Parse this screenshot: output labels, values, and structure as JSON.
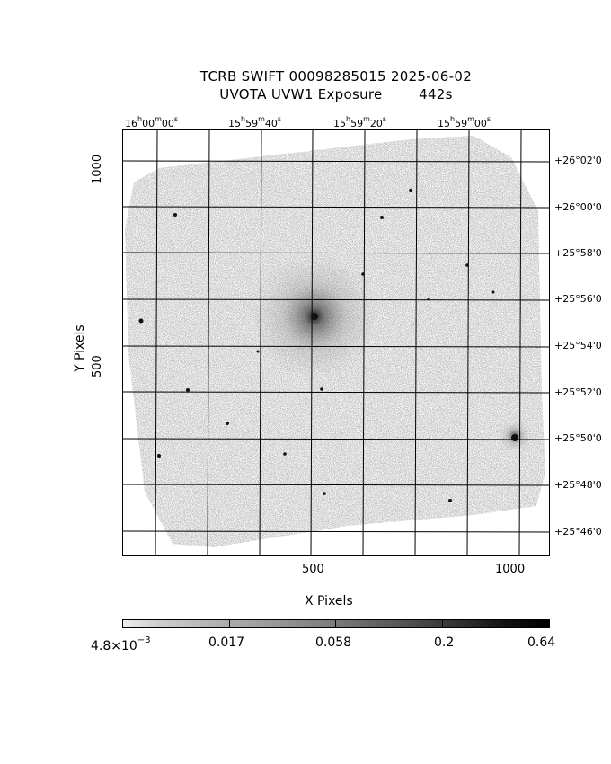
{
  "title_line1": "TCRB SWIFT 00098285015 2025-06-02",
  "title_line2": "UVOTA UVW1 Exposure        442s",
  "x_axis": {
    "label": "X Pixels",
    "ticks": [
      "500",
      "1000"
    ]
  },
  "y_axis": {
    "label": "Y Pixels",
    "ticks": [
      "500",
      "1000"
    ]
  },
  "ra_ticks": [
    {
      "h": "16",
      "m": "00",
      "s": "00"
    },
    {
      "h": "15",
      "m": "59",
      "s": "40"
    },
    {
      "h": "15",
      "m": "59",
      "s": "20"
    },
    {
      "h": "15",
      "m": "59",
      "s": "00"
    }
  ],
  "dec_ticks": [
    "+26°02'0",
    "+26°00'0",
    "+25°58'0",
    "+25°56'0",
    "+25°54'0",
    "+25°52'0",
    "+25°50'0",
    "+25°48'0",
    "+25°46'0"
  ],
  "colorbar": {
    "ticks": [
      "4.8×10",
      "0.017",
      "0.058",
      "0.2",
      "0.64"
    ],
    "first_exponent": "−3"
  },
  "colors": {
    "noise": "#9a9a9a",
    "grid": "#000000"
  }
}
